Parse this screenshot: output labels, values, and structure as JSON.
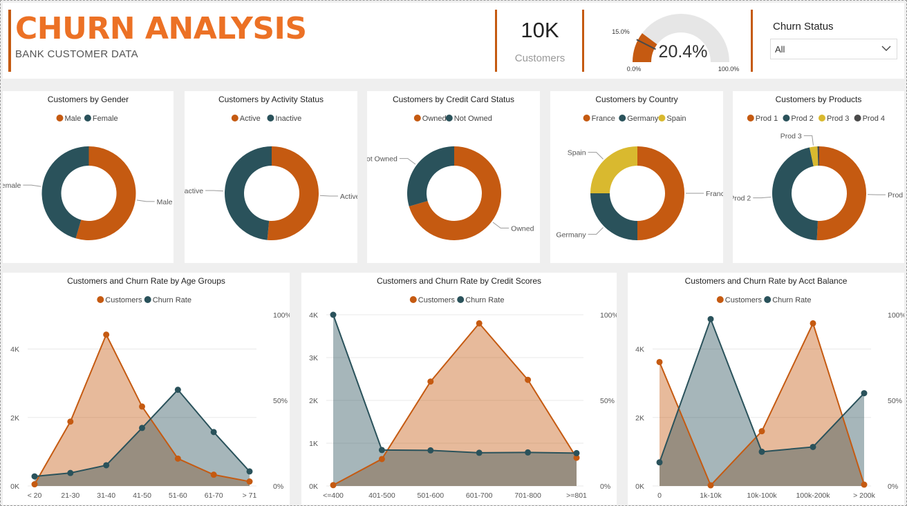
{
  "header": {
    "title": "CHURN ANALYSIS",
    "subtitle": "BANK CUSTOMER DATA",
    "kpi_value": "10K",
    "kpi_label": "Customers",
    "gauge": {
      "value": 0.204,
      "value_label": "20.4%",
      "target_label": "15.0%",
      "min_label": "0.0%",
      "max_label": "100.0%"
    },
    "slicer_title": "Churn Status",
    "slicer_value": "All"
  },
  "colors": {
    "orange": "#c55a11",
    "teal": "#2a525b",
    "yellow": "#d9b92f",
    "gray": "#4a4a4a",
    "gauge_bg": "#e6e6e6"
  },
  "chart_data": [
    {
      "type": "pie",
      "title": "Customers by Gender",
      "legend": [
        "Male",
        "Female"
      ],
      "slices": [
        {
          "label": "Male",
          "value": 0.545,
          "color": "#c55a11"
        },
        {
          "label": "Female",
          "value": 0.455,
          "color": "#2a525b"
        }
      ]
    },
    {
      "type": "pie",
      "title": "Customers by Activity Status",
      "legend": [
        "Active",
        "Inactive"
      ],
      "slices": [
        {
          "label": "Active",
          "value": 0.515,
          "color": "#c55a11"
        },
        {
          "label": "Inactive",
          "value": 0.485,
          "color": "#2a525b"
        }
      ]
    },
    {
      "type": "pie",
      "title": "Customers by Credit Card Status",
      "legend": [
        "Owned",
        "Not Owned"
      ],
      "slices": [
        {
          "label": "Owned",
          "value": 0.705,
          "color": "#c55a11"
        },
        {
          "label": "Not Owned",
          "value": 0.295,
          "color": "#2a525b"
        }
      ]
    },
    {
      "type": "pie",
      "title": "Customers by Country",
      "legend": [
        "France",
        "Germany",
        "Spain"
      ],
      "slices": [
        {
          "label": "France",
          "value": 0.5,
          "color": "#c55a11"
        },
        {
          "label": "Germany",
          "value": 0.25,
          "color": "#2a525b"
        },
        {
          "label": "Spain",
          "value": 0.25,
          "color": "#d9b92f"
        }
      ]
    },
    {
      "type": "pie",
      "title": "Customers by Products",
      "legend": [
        "Prod 1",
        "Prod 2",
        "Prod 3",
        "Prod 4"
      ],
      "slices": [
        {
          "label": "Prod 1",
          "value": 0.508,
          "color": "#c55a11"
        },
        {
          "label": "Prod 2",
          "value": 0.459,
          "color": "#2a525b"
        },
        {
          "label": "Prod 3",
          "value": 0.027,
          "color": "#d9b92f"
        },
        {
          "label": "Prod 4",
          "value": 0.006,
          "color": "#4a4a4a"
        }
      ]
    },
    {
      "type": "area",
      "title": "Customers and Churn Rate by Age Groups",
      "legend": [
        "Customers",
        "Churn Rate"
      ],
      "categories": [
        "< 20",
        "21-30",
        "31-40",
        "41-50",
        "51-60",
        "61-70",
        "> 71"
      ],
      "left_ticks": [
        "0K",
        "2K",
        "4K"
      ],
      "left_max": 5000,
      "right_ticks": [
        "0%",
        "50%",
        "100%"
      ],
      "right_max": 100,
      "series": [
        {
          "name": "Customers",
          "values": [
            50,
            1880,
            4420,
            2320,
            800,
            330,
            130
          ]
        },
        {
          "name": "Churn Rate",
          "values": [
            5.6,
            7.6,
            12.1,
            33.9,
            56.2,
            31.5,
            8.5
          ]
        }
      ]
    },
    {
      "type": "area",
      "title": "Customers and Churn Rate by Credit Scores",
      "legend": [
        "Customers",
        "Churn Rate"
      ],
      "categories": [
        "<=400",
        "401-500",
        "501-600",
        "601-700",
        "701-800",
        ">=801"
      ],
      "left_ticks": [
        "0K",
        "1K",
        "2K",
        "3K",
        "4K"
      ],
      "left_max": 4000,
      "right_ticks": [
        "0%",
        "50%",
        "100%"
      ],
      "right_max": 100,
      "series": [
        {
          "name": "Customers",
          "values": [
            20,
            630,
            2440,
            3800,
            2480,
            660
          ]
        },
        {
          "name": "Churn Rate",
          "values": [
            100,
            21,
            20.8,
            19.4,
            19.6,
            19.2
          ]
        }
      ]
    },
    {
      "type": "area",
      "title": "Customers and Churn Rate by Acct Balance",
      "legend": [
        "Customers",
        "Churn Rate"
      ],
      "categories": [
        "0",
        "1k-10k",
        "10k-100k",
        "100k-200k",
        "> 200k"
      ],
      "left_ticks": [
        "0K",
        "2K",
        "4K"
      ],
      "left_max": 5000,
      "right_ticks": [
        "0%",
        "50%",
        "100%"
      ],
      "right_max": 100,
      "series": [
        {
          "name": "Customers",
          "values": [
            3620,
            20,
            1600,
            4750,
            40
          ]
        },
        {
          "name": "Churn Rate",
          "values": [
            13.8,
            97.5,
            20,
            22.8,
            54.2
          ]
        }
      ]
    }
  ]
}
